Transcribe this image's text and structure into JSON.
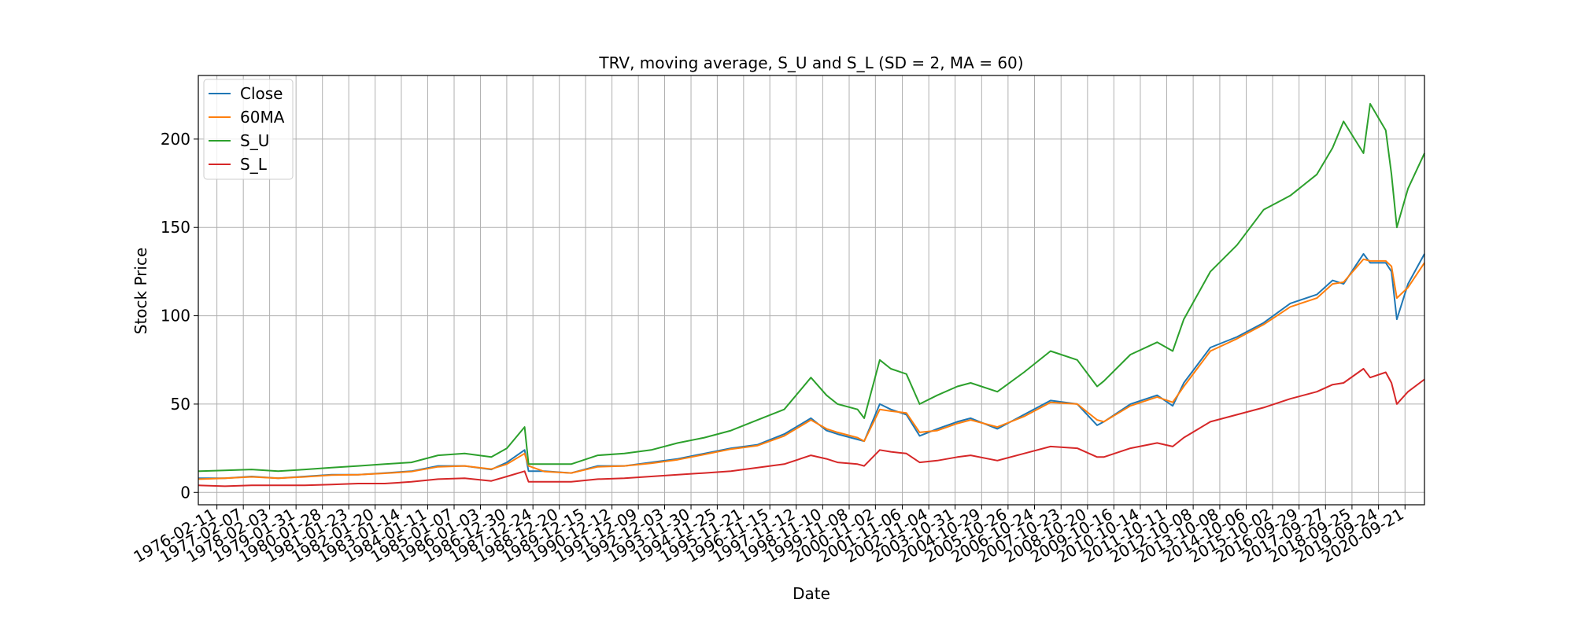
{
  "chart_data": {
    "type": "line",
    "title": "TRV, moving average, S_U and S_L (SD = 2, MA = 60)",
    "xlabel": "Date",
    "ylabel": "Stock Price",
    "xlim": [
      "1975-06-01",
      "2021-06-15"
    ],
    "ylim": [
      -7,
      236
    ],
    "yticks": [
      0,
      50,
      100,
      150,
      200
    ],
    "xticks": [
      "1976-02-11",
      "1977-02-07",
      "1978-02-03",
      "1979-01-31",
      "1980-01-28",
      "1981-01-23",
      "1982-01-20",
      "1983-01-14",
      "1984-01-11",
      "1985-01-07",
      "1986-01-03",
      "1986-12-30",
      "1987-12-24",
      "1988-12-20",
      "1989-12-15",
      "1990-12-12",
      "1991-12-09",
      "1992-12-03",
      "1993-11-30",
      "1994-11-25",
      "1995-11-21",
      "1996-11-15",
      "1997-11-12",
      "1998-11-10",
      "1999-11-08",
      "2000-11-02",
      "2001-11-06",
      "2002-11-04",
      "2003-10-31",
      "2004-10-29",
      "2005-10-26",
      "2006-10-24",
      "2007-10-23",
      "2008-10-20",
      "2009-10-16",
      "2010-10-14",
      "2011-10-11",
      "2012-10-08",
      "2013-10-08",
      "2014-10-06",
      "2015-10-02",
      "2016-09-29",
      "2017-09-27",
      "2018-09-25",
      "2019-09-24",
      "2020-09-21"
    ],
    "grid": true,
    "legend": "upper left",
    "series": [
      {
        "name": "Close",
        "color": "#1f77b4",
        "x": [
          "1975-06-01",
          "1976-06-01",
          "1977-06-01",
          "1978-06-01",
          "1979-06-01",
          "1980-06-01",
          "1981-06-01",
          "1982-06-01",
          "1983-06-01",
          "1984-06-01",
          "1985-06-01",
          "1986-06-01",
          "1987-01-01",
          "1987-09-01",
          "1987-10-25",
          "1988-06-01",
          "1989-06-01",
          "1990-06-01",
          "1991-06-01",
          "1992-06-01",
          "1993-06-01",
          "1994-06-01",
          "1995-06-01",
          "1996-06-01",
          "1997-06-01",
          "1998-06-01",
          "1999-01-01",
          "1999-06-01",
          "2000-03-01",
          "2000-06-01",
          "2001-01-01",
          "2001-06-01",
          "2002-01-01",
          "2002-07-01",
          "2003-03-01",
          "2003-12-01",
          "2004-06-01",
          "2005-06-01",
          "2006-06-01",
          "2007-06-01",
          "2008-06-01",
          "2009-03-01",
          "2009-06-01",
          "2010-06-01",
          "2011-06-01",
          "2012-01-01",
          "2012-06-01",
          "2013-06-01",
          "2014-06-01",
          "2015-06-01",
          "2016-06-01",
          "2017-06-01",
          "2018-01-01",
          "2018-06-01",
          "2019-03-01",
          "2019-06-01",
          "2020-01-01",
          "2020-03-20",
          "2020-06-01",
          "2020-11-01",
          "2021-06-15"
        ],
        "values": [
          8,
          8,
          9,
          8,
          9,
          10,
          10,
          11,
          12,
          15,
          15,
          13,
          17,
          24,
          12,
          12,
          11,
          15,
          15,
          17,
          19,
          22,
          25,
          27,
          33,
          42,
          35,
          33,
          30,
          29,
          50,
          47,
          44,
          32,
          36,
          40,
          42,
          36,
          44,
          52,
          50,
          38,
          40,
          50,
          55,
          49,
          62,
          82,
          88,
          96,
          107,
          112,
          120,
          118,
          135,
          130,
          130,
          125,
          98,
          118,
          135
        ]
      },
      {
        "name": "60MA",
        "color": "#ff7f0e",
        "x": [
          "1975-06-01",
          "1976-06-01",
          "1977-06-01",
          "1978-06-01",
          "1979-06-01",
          "1980-06-01",
          "1981-06-01",
          "1982-06-01",
          "1983-06-01",
          "1984-06-01",
          "1985-06-01",
          "1986-06-01",
          "1987-01-01",
          "1987-09-01",
          "1987-10-25",
          "1988-06-01",
          "1989-06-01",
          "1990-06-01",
          "1991-06-01",
          "1992-06-01",
          "1993-06-01",
          "1994-06-01",
          "1995-06-01",
          "1996-06-01",
          "1997-06-01",
          "1998-06-01",
          "1999-01-01",
          "1999-06-01",
          "2000-03-01",
          "2000-06-01",
          "2001-01-01",
          "2001-06-01",
          "2002-01-01",
          "2002-07-01",
          "2003-03-01",
          "2003-12-01",
          "2004-06-01",
          "2005-06-01",
          "2006-06-01",
          "2007-06-01",
          "2008-06-01",
          "2009-03-01",
          "2009-06-01",
          "2010-06-01",
          "2011-06-01",
          "2012-01-01",
          "2012-06-01",
          "2013-06-01",
          "2014-06-01",
          "2015-06-01",
          "2016-06-01",
          "2017-06-01",
          "2018-01-01",
          "2018-06-01",
          "2019-03-01",
          "2019-06-01",
          "2020-01-01",
          "2020-03-20",
          "2020-06-01",
          "2020-11-01",
          "2021-06-15"
        ],
        "values": [
          7.5,
          8,
          8.8,
          8,
          8.8,
          9.8,
          10,
          10.8,
          11.8,
          14.5,
          15,
          13.2,
          16,
          22,
          15,
          11.8,
          11,
          14.5,
          15,
          16.5,
          18.5,
          21.5,
          24.5,
          26.5,
          32,
          41,
          36,
          34,
          31,
          29,
          47,
          46,
          45,
          34,
          35,
          39,
          41,
          37,
          43,
          51,
          50,
          41,
          40,
          49,
          54,
          51,
          60,
          80,
          87,
          95,
          105,
          110,
          118,
          119,
          132,
          131,
          131,
          128,
          110,
          116,
          130
        ]
      },
      {
        "name": "S_U",
        "color": "#2ca02c",
        "x": [
          "1975-06-01",
          "1976-06-01",
          "1977-06-01",
          "1978-06-01",
          "1979-06-01",
          "1980-06-01",
          "1981-06-01",
          "1982-06-01",
          "1983-06-01",
          "1984-06-01",
          "1985-06-01",
          "1986-06-01",
          "1987-01-01",
          "1987-09-01",
          "1987-10-25",
          "1988-06-01",
          "1989-06-01",
          "1990-06-01",
          "1991-06-01",
          "1992-06-01",
          "1993-06-01",
          "1994-06-01",
          "1995-06-01",
          "1996-06-01",
          "1997-06-01",
          "1998-06-01",
          "1999-01-01",
          "1999-06-01",
          "2000-03-01",
          "2000-06-01",
          "2001-01-01",
          "2001-06-01",
          "2002-01-01",
          "2002-07-01",
          "2003-03-01",
          "2003-12-01",
          "2004-06-01",
          "2005-06-01",
          "2006-06-01",
          "2007-06-01",
          "2008-06-01",
          "2009-03-01",
          "2009-06-01",
          "2010-06-01",
          "2011-06-01",
          "2012-01-01",
          "2012-06-01",
          "2013-06-01",
          "2014-06-01",
          "2015-06-01",
          "2016-06-01",
          "2017-06-01",
          "2018-01-01",
          "2018-06-01",
          "2019-03-01",
          "2019-06-01",
          "2020-01-01",
          "2020-03-20",
          "2020-06-01",
          "2020-11-01",
          "2021-06-15"
        ],
        "values": [
          12,
          12.5,
          13,
          12,
          13,
          14,
          15,
          16,
          17,
          21,
          22,
          20,
          25,
          37,
          16,
          16,
          16,
          21,
          22,
          24,
          28,
          31,
          35,
          41,
          47,
          65,
          55,
          50,
          47,
          42,
          75,
          70,
          67,
          50,
          55,
          60,
          62,
          57,
          68,
          80,
          75,
          60,
          63,
          78,
          85,
          80,
          98,
          125,
          140,
          160,
          168,
          180,
          195,
          210,
          192,
          220,
          205,
          180,
          150,
          172,
          192
        ]
      },
      {
        "name": "S_L",
        "color": "#d62728",
        "x": [
          "1975-06-01",
          "1976-06-01",
          "1977-06-01",
          "1978-06-01",
          "1979-06-01",
          "1980-06-01",
          "1981-06-01",
          "1982-06-01",
          "1983-06-01",
          "1984-06-01",
          "1985-06-01",
          "1986-06-01",
          "1987-01-01",
          "1987-09-01",
          "1987-10-25",
          "1988-06-01",
          "1989-06-01",
          "1990-06-01",
          "1991-06-01",
          "1992-06-01",
          "1993-06-01",
          "1994-06-01",
          "1995-06-01",
          "1996-06-01",
          "1997-06-01",
          "1998-06-01",
          "1999-01-01",
          "1999-06-01",
          "2000-03-01",
          "2000-06-01",
          "2001-01-01",
          "2001-06-01",
          "2002-01-01",
          "2002-07-01",
          "2003-03-01",
          "2003-12-01",
          "2004-06-01",
          "2005-06-01",
          "2006-06-01",
          "2007-06-01",
          "2008-06-01",
          "2009-03-01",
          "2009-06-01",
          "2010-06-01",
          "2011-06-01",
          "2012-01-01",
          "2012-06-01",
          "2013-06-01",
          "2014-06-01",
          "2015-06-01",
          "2016-06-01",
          "2017-06-01",
          "2018-01-01",
          "2018-06-01",
          "2019-03-01",
          "2019-06-01",
          "2020-01-01",
          "2020-03-20",
          "2020-06-01",
          "2020-11-01",
          "2021-06-15"
        ],
        "values": [
          4,
          3.5,
          4,
          4,
          4,
          4.5,
          5,
          5,
          6,
          7.5,
          8,
          6.5,
          9,
          12,
          6,
          6,
          6,
          7.5,
          8,
          9,
          10,
          11,
          12,
          14,
          16,
          21,
          19,
          17,
          16,
          15,
          24,
          23,
          22,
          17,
          18,
          20,
          21,
          18,
          22,
          26,
          25,
          20,
          20,
          25,
          28,
          26,
          31,
          40,
          44,
          48,
          53,
          57,
          61,
          62,
          70,
          65,
          68,
          62,
          50,
          57,
          64
        ]
      }
    ]
  }
}
